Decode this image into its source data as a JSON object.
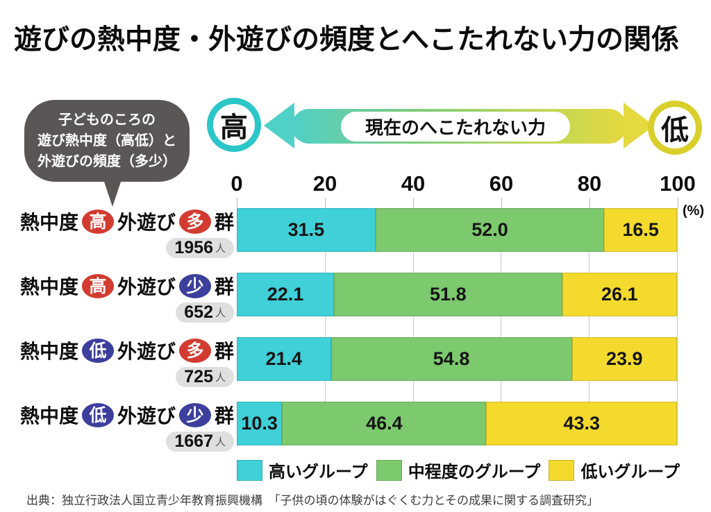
{
  "title": "遊びの熱中度・外遊びの頻度とへこたれない力の関係",
  "annotation_bubble": {
    "lines": [
      "子どものころの",
      "遊び熱中度（高低）と",
      "外遊びの頻度（多少）"
    ]
  },
  "axis_arrow": {
    "left_circle": "高",
    "right_circle": "低",
    "center_label": "現在のへこたれない力",
    "left_color": "#2bc6c8",
    "right_color": "#d9cf2b"
  },
  "chart_data": {
    "type": "bar",
    "stacked": true,
    "orientation": "horizontal",
    "title": "遊びの熱中度・外遊びの頻度とへこたれない力の関係",
    "unit_label": "(%)",
    "xlim": [
      0,
      100
    ],
    "x_ticks": [
      "0",
      "20",
      "40",
      "60",
      "80",
      "100"
    ],
    "grid": true,
    "legend_position": "bottom",
    "series": [
      {
        "name": "高いグループ",
        "color": "#3fd0d8",
        "values": [
          31.5,
          22.1,
          21.4,
          10.3
        ]
      },
      {
        "name": "中程度のグループ",
        "color": "#7cc96e",
        "values": [
          52.0,
          51.8,
          54.8,
          46.4
        ]
      },
      {
        "name": "低いグループ",
        "color": "#f3da2d",
        "values": [
          16.5,
          26.1,
          23.9,
          43.3
        ]
      }
    ],
    "rows": [
      {
        "prefix1": "熱中度",
        "badge1": {
          "text": "高",
          "color": "#d23c30"
        },
        "prefix2": "外遊び",
        "badge2": {
          "text": "多",
          "color": "#d23c30"
        },
        "suffix": "群",
        "count": "1956",
        "count_unit": "人",
        "values": [
          31.5,
          52.0,
          16.5
        ],
        "value_labels": [
          "31.5",
          "52.0",
          "16.5"
        ]
      },
      {
        "prefix1": "熱中度",
        "badge1": {
          "text": "高",
          "color": "#d23c30"
        },
        "prefix2": "外遊び",
        "badge2": {
          "text": "少",
          "color": "#3c3f9b"
        },
        "suffix": "群",
        "count": "652",
        "count_unit": "人",
        "values": [
          22.1,
          51.8,
          26.1
        ],
        "value_labels": [
          "22.1",
          "51.8",
          "26.1"
        ]
      },
      {
        "prefix1": "熱中度",
        "badge1": {
          "text": "低",
          "color": "#3c3f9b"
        },
        "prefix2": "外遊び",
        "badge2": {
          "text": "多",
          "color": "#d23c30"
        },
        "suffix": "群",
        "count": "725",
        "count_unit": "人",
        "values": [
          21.4,
          54.8,
          23.9
        ],
        "value_labels": [
          "21.4",
          "54.8",
          "23.9"
        ]
      },
      {
        "prefix1": "熱中度",
        "badge1": {
          "text": "低",
          "color": "#3c3f9b"
        },
        "prefix2": "外遊び",
        "badge2": {
          "text": "少",
          "color": "#3c3f9b"
        },
        "suffix": "群",
        "count": "1667",
        "count_unit": "人",
        "values": [
          10.3,
          46.4,
          43.3
        ],
        "value_labels": [
          "10.3",
          "46.4",
          "43.3"
        ]
      }
    ]
  },
  "legend": [
    {
      "label": "高いグループ",
      "color": "#3fd0d8"
    },
    {
      "label": "中程度のグループ",
      "color": "#7cc96e"
    },
    {
      "label": "低いグループ",
      "color": "#f3da2d"
    }
  ],
  "source": "出典：独立行政法人国立青少年教育振興機構　「子供の頃の体験がはぐくむ力とその成果に関する調査研究」"
}
